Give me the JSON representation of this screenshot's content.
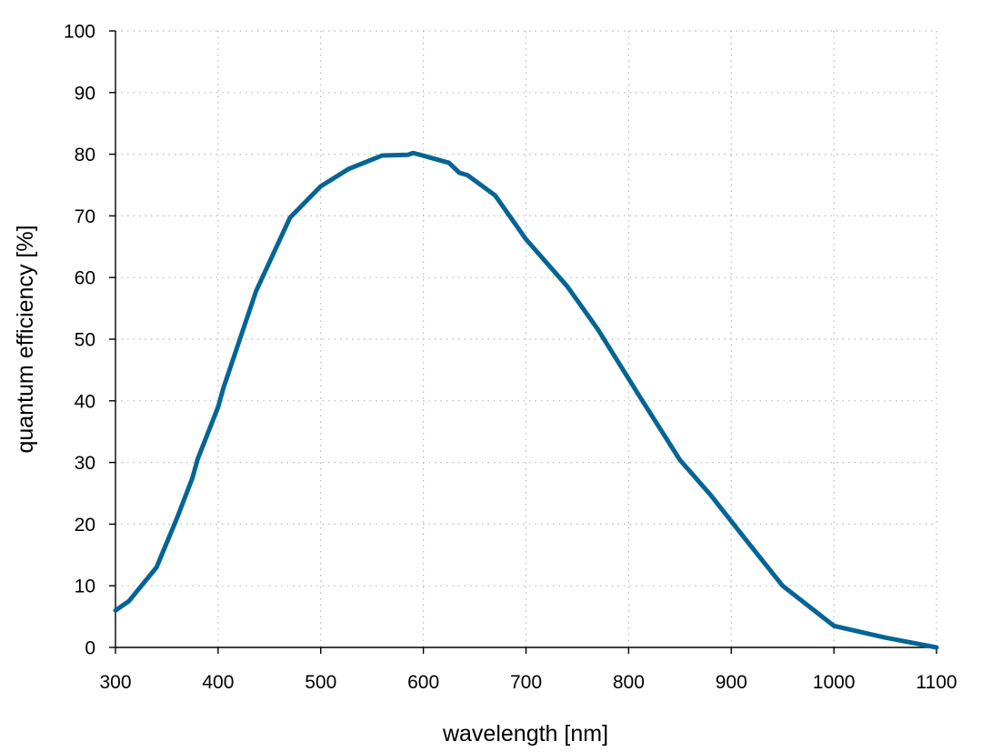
{
  "chart_data": {
    "type": "line",
    "title": "",
    "xlabel": "wavelength [nm]",
    "ylabel": "quantum efficiency [%]",
    "xlim": [
      300,
      1100
    ],
    "ylim": [
      0,
      100
    ],
    "x_ticks": [
      300,
      400,
      500,
      600,
      700,
      800,
      900,
      1000,
      1100
    ],
    "y_ticks": [
      0,
      10,
      20,
      30,
      40,
      50,
      60,
      70,
      80,
      90,
      100
    ],
    "grid": true,
    "legend": "none",
    "colors": {
      "series": "#046594",
      "axis": "#000000",
      "grid": "#b8b8b8"
    },
    "series": [
      {
        "x": [
          300,
          313,
          340,
          360,
          375,
          380,
          400,
          405,
          437,
          470,
          500,
          527,
          560,
          585,
          590,
          597,
          625,
          635,
          643,
          670,
          700,
          740,
          770,
          810,
          850,
          880,
          915,
          950,
          1000,
          1050,
          1100
        ],
        "y": [
          6,
          7.5,
          13,
          21,
          27.5,
          30.5,
          39,
          42,
          57.8,
          69.7,
          74.8,
          77.6,
          79.8,
          79.9,
          80.2,
          79.9,
          78.6,
          77,
          76.6,
          73.3,
          66.2,
          58.6,
          51.6,
          40.9,
          30.4,
          24.7,
          17.3,
          10,
          3.5,
          1.6,
          0
        ]
      }
    ]
  }
}
